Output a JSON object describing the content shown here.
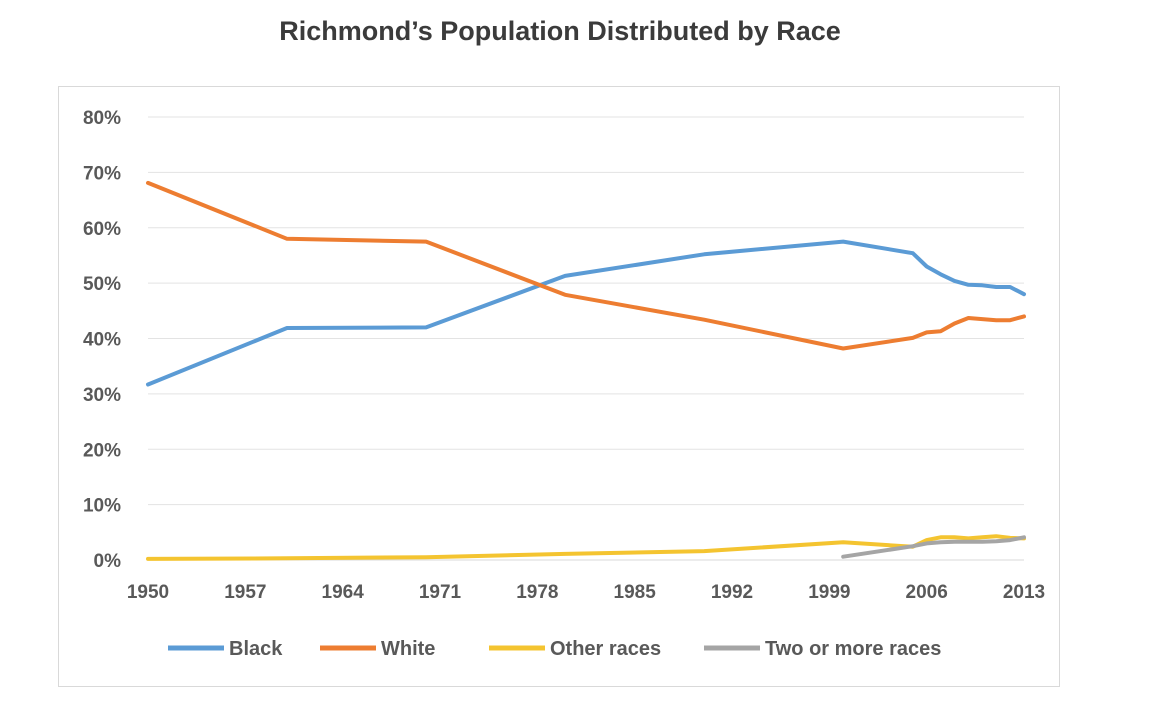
{
  "chart_data": {
    "type": "line",
    "title": "Richmond’s Population Distributed by Race",
    "xlabel": "",
    "ylabel": "",
    "xlim": [
      1950,
      2013
    ],
    "ylim": [
      0,
      80
    ],
    "x_ticks": [
      "1950",
      "1957",
      "1964",
      "1971",
      "1978",
      "1985",
      "1992",
      "1999",
      "2006",
      "2013"
    ],
    "y_ticks": [
      "0%",
      "10%",
      "20%",
      "30%",
      "40%",
      "50%",
      "60%",
      "70%",
      "80%"
    ],
    "legend_position": "bottom",
    "grid": true,
    "series": [
      {
        "name": "Black",
        "color": "#5b9bd5",
        "x": [
          1950,
          1960,
          1970,
          1980,
          1990,
          2000,
          2005,
          2006,
          2007,
          2008,
          2009,
          2010,
          2011,
          2012,
          2013
        ],
        "values": [
          31.7,
          41.9,
          42.0,
          51.3,
          55.2,
          57.5,
          55.4,
          53.0,
          51.6,
          50.4,
          49.7,
          49.6,
          49.3,
          49.3,
          48.0
        ]
      },
      {
        "name": "White",
        "color": "#ed7d31",
        "x": [
          1950,
          1960,
          1970,
          1980,
          1990,
          2000,
          2005,
          2006,
          2007,
          2008,
          2009,
          2010,
          2011,
          2012,
          2013
        ],
        "values": [
          68.1,
          58.0,
          57.5,
          47.9,
          43.4,
          38.2,
          40.1,
          41.1,
          41.3,
          42.7,
          43.7,
          43.5,
          43.3,
          43.3,
          44.0
        ]
      },
      {
        "name": "Other races",
        "color": "#f4c430",
        "x": [
          1950,
          1960,
          1970,
          1980,
          1990,
          2000,
          2005,
          2006,
          2007,
          2008,
          2009,
          2010,
          2011,
          2012,
          2013
        ],
        "values": [
          0.2,
          0.3,
          0.5,
          1.1,
          1.6,
          3.2,
          2.4,
          3.6,
          4.1,
          4.1,
          3.9,
          4.1,
          4.3,
          4.0,
          3.9
        ]
      },
      {
        "name": "Two or more races",
        "color": "#a5a5a5",
        "x": [
          2000,
          2005,
          2006,
          2007,
          2008,
          2009,
          2010,
          2011,
          2012,
          2013
        ],
        "values": [
          0.6,
          2.5,
          3.0,
          3.2,
          3.3,
          3.3,
          3.3,
          3.4,
          3.6,
          4.1
        ]
      }
    ]
  }
}
